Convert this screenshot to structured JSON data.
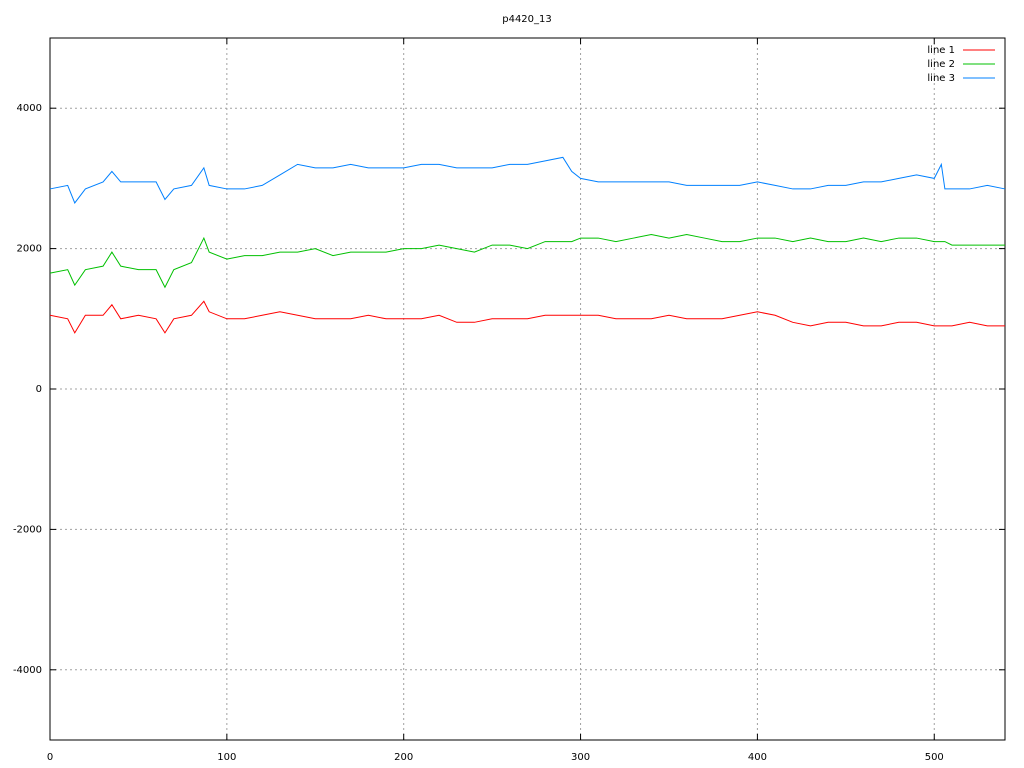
{
  "chart_data": {
    "type": "line",
    "title": "p4420_13",
    "x": [
      0,
      10,
      14,
      20,
      30,
      35,
      40,
      50,
      60,
      65,
      70,
      80,
      87,
      90,
      100,
      110,
      120,
      130,
      140,
      150,
      160,
      170,
      180,
      190,
      200,
      210,
      220,
      230,
      240,
      250,
      260,
      270,
      280,
      290,
      295,
      300,
      310,
      320,
      330,
      340,
      350,
      360,
      370,
      380,
      390,
      400,
      410,
      420,
      430,
      440,
      450,
      460,
      470,
      480,
      490,
      500,
      504,
      506,
      510,
      520,
      530,
      540
    ],
    "series": [
      {
        "name": "line 1",
        "color": "#ff0000",
        "values": [
          1050,
          1000,
          800,
          1050,
          1050,
          1200,
          1000,
          1050,
          1000,
          800,
          1000,
          1050,
          1250,
          1100,
          1000,
          1000,
          1050,
          1100,
          1050,
          1000,
          1000,
          1000,
          1050,
          1000,
          1000,
          1000,
          1050,
          950,
          950,
          1000,
          1000,
          1000,
          1050,
          1050,
          1050,
          1050,
          1050,
          1000,
          1000,
          1000,
          1050,
          1000,
          1000,
          1000,
          1050,
          1100,
          1050,
          950,
          900,
          950,
          950,
          900,
          900,
          950,
          950,
          900,
          900,
          900,
          900,
          950,
          900,
          900
        ]
      },
      {
        "name": "line 2",
        "color": "#00c000",
        "values": [
          1650,
          1700,
          1480,
          1700,
          1750,
          1950,
          1750,
          1700,
          1700,
          1450,
          1700,
          1800,
          2150,
          1950,
          1850,
          1900,
          1900,
          1950,
          1950,
          2000,
          1900,
          1950,
          1950,
          1950,
          2000,
          2000,
          2050,
          2000,
          1950,
          2050,
          2050,
          2000,
          2100,
          2100,
          2100,
          2150,
          2150,
          2100,
          2150,
          2200,
          2150,
          2200,
          2150,
          2100,
          2100,
          2150,
          2150,
          2100,
          2150,
          2100,
          2100,
          2150,
          2100,
          2150,
          2150,
          2100,
          2100,
          2100,
          2050,
          2050,
          2050,
          2050
        ]
      },
      {
        "name": "line 3",
        "color": "#0080ff",
        "values": [
          2850,
          2900,
          2650,
          2850,
          2950,
          3100,
          2950,
          2950,
          2950,
          2700,
          2850,
          2900,
          3150,
          2900,
          2850,
          2850,
          2900,
          3050,
          3200,
          3150,
          3150,
          3200,
          3150,
          3150,
          3150,
          3200,
          3200,
          3150,
          3150,
          3150,
          3200,
          3200,
          3250,
          3300,
          3100,
          3000,
          2950,
          2950,
          2950,
          2950,
          2950,
          2900,
          2900,
          2900,
          2900,
          2950,
          2900,
          2850,
          2850,
          2900,
          2900,
          2950,
          2950,
          3000,
          3050,
          3000,
          3200,
          2850,
          2850,
          2850,
          2900,
          2850
        ]
      }
    ],
    "xlim": [
      0,
      540
    ],
    "xticks": [
      0,
      100,
      200,
      300,
      400,
      500
    ],
    "ylim": [
      -5000,
      5000
    ],
    "yticks": [
      -4000,
      -2000,
      0,
      2000,
      4000
    ],
    "grid": true,
    "legend": "top-right"
  }
}
